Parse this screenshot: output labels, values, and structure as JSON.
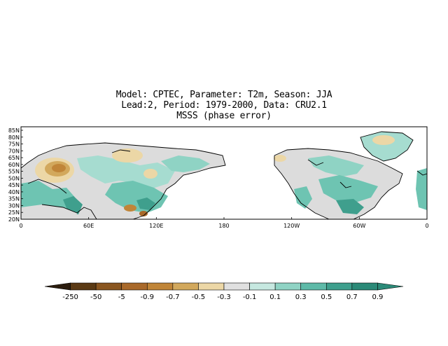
{
  "title": {
    "line1": "Model: CPTEC, Parameter: T2m, Season: JJA",
    "line2": "Lead:2, Period: 1979-2000, Data: CRU2.1",
    "line3": "MSSS (phase error)"
  },
  "map": {
    "lon_range": [
      0,
      360
    ],
    "lat_range": [
      20,
      85
    ],
    "lat_labels": [
      "85N",
      "80N",
      "75N",
      "70N",
      "65N",
      "60N",
      "55N",
      "50N",
      "45N",
      "40N",
      "35N",
      "30N",
      "25N",
      "20N"
    ],
    "lon_labels": [
      "0",
      "60E",
      "120E",
      "180",
      "120W",
      "60W",
      "0"
    ]
  },
  "colorbar": {
    "labels": [
      "-250",
      "-50",
      "-5",
      "-0.9",
      "-0.7",
      "-0.5",
      "-0.3",
      "-0.1",
      "0.1",
      "0.3",
      "0.5",
      "0.7",
      "0.9"
    ],
    "colors": [
      "#2b1c0d",
      "#5b3a14",
      "#8a5620",
      "#a9692a",
      "#c08538",
      "#d2a85c",
      "#ecd7a6",
      "#e0e0e0",
      "#c6e8e0",
      "#8fd3c4",
      "#5ebaa8",
      "#3e9f8d",
      "#2b8a78"
    ]
  }
}
